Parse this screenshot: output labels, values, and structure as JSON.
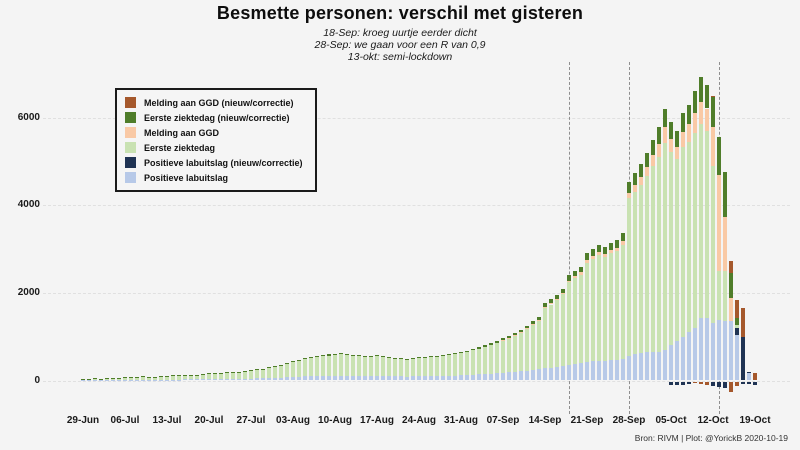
{
  "header": {
    "title": "Besmette personen: verschil met gisteren",
    "subtitles": [
      "18-Sep: kroeg uurtje eerder dicht",
      "28-Sep: we gaan voor een R van 0,9",
      "13-okt: semi-lockdown"
    ]
  },
  "footer": {
    "credit": "Bron: RIVM | Plot: @YorickB  2020-10-19"
  },
  "legend": {
    "items": [
      {
        "label": "Melding aan GGD (nieuw/correctie)",
        "color": "#a5582c"
      },
      {
        "label": "Eerste ziektedag (nieuw/correctie)",
        "color": "#4f7d2a"
      },
      {
        "label": "Melding aan GGD",
        "color": "#f9c9a5"
      },
      {
        "label": "Eerste ziektedag",
        "color": "#c9e2b2"
      },
      {
        "label": "Positieve labuitslag (nieuw/correctie)",
        "color": "#1f3353"
      },
      {
        "label": "Positieve labuitslag",
        "color": "#b7c9e8"
      }
    ]
  },
  "colors": {
    "background": "#f4f4f4",
    "gridline": "#e0e0e0",
    "event_line": "#8f8f8f"
  },
  "chart_data": {
    "type": "bar",
    "stacked": true,
    "title": "Besmette personen: verschil met gisteren",
    "xlabel": "",
    "ylabel": "",
    "date_range": [
      "29-Jun",
      "19-Oct"
    ],
    "x_tick_labels": [
      "29-Jun",
      "06-Jul",
      "13-Jul",
      "20-Jul",
      "27-Jul",
      "03-Aug",
      "10-Aug",
      "17-Aug",
      "24-Aug",
      "31-Aug",
      "07-Sep",
      "14-Sep",
      "21-Sep",
      "28-Sep",
      "05-Oct",
      "12-Oct",
      "19-Oct"
    ],
    "x_tick_days": [
      0,
      7,
      14,
      21,
      28,
      35,
      42,
      49,
      56,
      63,
      70,
      77,
      84,
      91,
      98,
      105,
      112
    ],
    "y_ticks": [
      0,
      2000,
      4000,
      6000
    ],
    "ylim": [
      -500,
      7300
    ],
    "grid": "horizontal-dashed",
    "legend_position": "upper-left",
    "events": [
      {
        "day": 81,
        "label": "18-Sep",
        "note": "kroeg uurtje eerder dicht"
      },
      {
        "day": 91,
        "label": "28-Sep",
        "note": "we gaan voor een R van 0,9"
      },
      {
        "day": 106,
        "label": "13-okt",
        "note": "semi-lockdown"
      }
    ],
    "columns_schema": [
      "positieve_labuitslag",
      "positieve_labuitslag_nieuw",
      "eerste_ziektedag",
      "melding_aan_ggd",
      "eerste_ziektedag_nieuw",
      "melding_aan_ggd_nieuw",
      "neg_positieve_labuitslag_nieuw",
      "neg_melding_aan_ggd_nieuw"
    ],
    "series_colors": {
      "positieve_labuitslag": "#b7c9e8",
      "positieve_labuitslag_nieuw": "#1f3353",
      "eerste_ziektedag": "#c9e2b2",
      "melding_aan_ggd": "#f9c9a5",
      "eerste_ziektedag_nieuw": "#4f7d2a",
      "melding_aan_ggd_nieuw": "#a5582c",
      "neg_positieve_labuitslag_nieuw": "#1f3353",
      "neg_melding_aan_ggd_nieuw": "#a5582c"
    },
    "days": [
      [
        8,
        0,
        27,
        0,
        5,
        0,
        0,
        0
      ],
      [
        9,
        0,
        31,
        0,
        5,
        0,
        0,
        0
      ],
      [
        10,
        0,
        35,
        0,
        5,
        0,
        0,
        0
      ],
      [
        8,
        0,
        28,
        0,
        4,
        0,
        0,
        0
      ],
      [
        10,
        0,
        40,
        0,
        5,
        0,
        0,
        0
      ],
      [
        10,
        0,
        35,
        0,
        5,
        0,
        0,
        0
      ],
      [
        12,
        0,
        42,
        0,
        6,
        0,
        0,
        0
      ],
      [
        14,
        0,
        55,
        0,
        6,
        0,
        0,
        0
      ],
      [
        15,
        0,
        63,
        0,
        7,
        0,
        0,
        0
      ],
      [
        15,
        0,
        58,
        0,
        7,
        0,
        0,
        0
      ],
      [
        17,
        0,
        70,
        0,
        8,
        0,
        0,
        0
      ],
      [
        16,
        0,
        66,
        0,
        8,
        0,
        0,
        0
      ],
      [
        15,
        0,
        62,
        0,
        8,
        0,
        0,
        0
      ],
      [
        18,
        0,
        74,
        0,
        8,
        0,
        0,
        0
      ],
      [
        20,
        0,
        81,
        0,
        9,
        0,
        0,
        0
      ],
      [
        22,
        0,
        89,
        0,
        9,
        0,
        0,
        0
      ],
      [
        21,
        0,
        85,
        0,
        9,
        0,
        0,
        0
      ],
      [
        24,
        0,
        96,
        0,
        10,
        0,
        0,
        0
      ],
      [
        23,
        0,
        92,
        0,
        10,
        0,
        0,
        0
      ],
      [
        25,
        0,
        100,
        0,
        10,
        0,
        0,
        0
      ],
      [
        27,
        0,
        112,
        0,
        11,
        0,
        0,
        0
      ],
      [
        29,
        0,
        120,
        0,
        11,
        0,
        0,
        0
      ],
      [
        31,
        0,
        127,
        0,
        12,
        0,
        0,
        0
      ],
      [
        30,
        0,
        123,
        0,
        12,
        0,
        0,
        0
      ],
      [
        34,
        0,
        138,
        0,
        13,
        0,
        0,
        0
      ],
      [
        35,
        0,
        146,
        0,
        14,
        0,
        0,
        0
      ],
      [
        37,
        0,
        154,
        0,
        14,
        0,
        0,
        0
      ],
      [
        40,
        0,
        165,
        0,
        15,
        0,
        0,
        0
      ],
      [
        44,
        0,
        181,
        0,
        15,
        0,
        0,
        0
      ],
      [
        46,
        0,
        193,
        0,
        16,
        0,
        0,
        0
      ],
      [
        49,
        0,
        204,
        0,
        17,
        0,
        0,
        0
      ],
      [
        55,
        0,
        227,
        0,
        18,
        0,
        0,
        0
      ],
      [
        60,
        0,
        251,
        0,
        19,
        0,
        0,
        0
      ],
      [
        66,
        0,
        279,
        0,
        20,
        0,
        0,
        0
      ],
      [
        74,
        0,
        310,
        0,
        21,
        0,
        0,
        0
      ],
      [
        81,
        0,
        342,
        0,
        22,
        0,
        0,
        0
      ],
      [
        86,
        0,
        366,
        0,
        23,
        0,
        0,
        0
      ],
      [
        92,
        0,
        389,
        0,
        24,
        0,
        0,
        0
      ],
      [
        97,
        0,
        414,
        0,
        24,
        0,
        0,
        0
      ],
      [
        101,
        0,
        429,
        0,
        25,
        0,
        0,
        0
      ],
      [
        105,
        0,
        445,
        0,
        25,
        0,
        0,
        0
      ],
      [
        108,
        0,
        462,
        0,
        25,
        0,
        0,
        0
      ],
      [
        112,
        0,
        478,
        0,
        25,
        0,
        0,
        0
      ],
      [
        114,
        0,
        486,
        0,
        25,
        0,
        0,
        0
      ],
      [
        110,
        0,
        471,
        0,
        24,
        0,
        0,
        0
      ],
      [
        107,
        0,
        459,
        0,
        24,
        0,
        0,
        0
      ],
      [
        105,
        0,
        447,
        0,
        23,
        0,
        0,
        0
      ],
      [
        103,
        0,
        439,
        0,
        23,
        0,
        0,
        0
      ],
      [
        101,
        0,
        431,
        0,
        23,
        0,
        0,
        0
      ],
      [
        106,
        0,
        451,
        0,
        23,
        0,
        0,
        0
      ],
      [
        102,
        0,
        435,
        0,
        23,
        0,
        0,
        0
      ],
      [
        98,
        0,
        420,
        0,
        22,
        0,
        0,
        0
      ],
      [
        95,
        0,
        403,
        0,
        22,
        0,
        0,
        0
      ],
      [
        92,
        0,
        391,
        0,
        22,
        0,
        0,
        0
      ],
      [
        90,
        0,
        384,
        0,
        21,
        0,
        0,
        0
      ],
      [
        93,
        0,
        396,
        0,
        21,
        0,
        0,
        0
      ],
      [
        96,
        0,
        412,
        0,
        22,
        0,
        0,
        0
      ],
      [
        98,
        0,
        420,
        0,
        22,
        0,
        0,
        0
      ],
      [
        100,
        0,
        428,
        0,
        22,
        0,
        0,
        0
      ],
      [
        103,
        0,
        439,
        0,
        23,
        0,
        0,
        0
      ],
      [
        106,
        0,
        451,
        0,
        23,
        0,
        0,
        0
      ],
      [
        109,
        0,
        467,
        0,
        24,
        0,
        0,
        0
      ],
      [
        113,
        0,
        483,
        0,
        24,
        0,
        0,
        0
      ],
      [
        118,
        0,
        506,
        0,
        26,
        0,
        0,
        0
      ],
      [
        124,
        0,
        529,
        0,
        27,
        0,
        0,
        0
      ],
      [
        130,
        0,
        557,
        0,
        28,
        0,
        0,
        0
      ],
      [
        137,
        0,
        588,
        0,
        30,
        0,
        0,
        0
      ],
      [
        146,
        0,
        622,
        0,
        32,
        0,
        0,
        0
      ],
      [
        155,
        0,
        661,
        0,
        34,
        0,
        0,
        0
      ],
      [
        164,
        0,
        700,
        0,
        36,
        0,
        0,
        0
      ],
      [
        175,
        0,
        737,
        10,
        38,
        0,
        0,
        0
      ],
      [
        186,
        0,
        782,
        12,
        40,
        0,
        0,
        0
      ],
      [
        197,
        0,
        827,
        13,
        43,
        0,
        0,
        0
      ],
      [
        209,
        0,
        879,
        15,
        47,
        0,
        0,
        0
      ],
      [
        228,
        0,
        954,
        17,
        51,
        0,
        0,
        0
      ],
      [
        246,
        0,
        1030,
        19,
        55,
        0,
        0,
        0
      ],
      [
        264,
        0,
        1105,
        21,
        60,
        0,
        0,
        0
      ],
      [
        280,
        0,
        1380,
        25,
        85,
        0,
        0,
        0
      ],
      [
        295,
        0,
        1440,
        28,
        87,
        0,
        0,
        0
      ],
      [
        310,
        0,
        1520,
        30,
        90,
        0,
        0,
        0
      ],
      [
        330,
        0,
        1640,
        35,
        95,
        0,
        0,
        0
      ],
      [
        360,
        0,
        1880,
        40,
        120,
        0,
        0,
        0
      ],
      [
        375,
        0,
        1960,
        45,
        120,
        0,
        0,
        0
      ],
      [
        390,
        0,
        2030,
        50,
        130,
        0,
        0,
        0
      ],
      [
        420,
        0,
        2270,
        60,
        150,
        0,
        0,
        0
      ],
      [
        435,
        0,
        2340,
        65,
        160,
        0,
        0,
        0
      ],
      [
        450,
        0,
        2420,
        70,
        160,
        0,
        0,
        0
      ],
      [
        445,
        0,
        2380,
        70,
        155,
        0,
        0,
        0
      ],
      [
        460,
        0,
        2450,
        75,
        165,
        0,
        0,
        0
      ],
      [
        470,
        0,
        2480,
        80,
        170,
        0,
        0,
        0
      ],
      [
        490,
        0,
        2600,
        90,
        180,
        0,
        0,
        0
      ],
      [
        570,
        0,
        3590,
        120,
        260,
        0,
        0,
        0
      ],
      [
        600,
        0,
        3710,
        150,
        280,
        0,
        0,
        0
      ],
      [
        620,
        0,
        3850,
        180,
        300,
        0,
        0,
        0
      ],
      [
        640,
        0,
        4020,
        220,
        320,
        0,
        0,
        0
      ],
      [
        650,
        0,
        4240,
        260,
        350,
        0,
        0,
        0
      ],
      [
        660,
        0,
        4450,
        300,
        380,
        0,
        0,
        0
      ],
      [
        700,
        0,
        4730,
        350,
        420,
        0,
        0,
        0
      ],
      [
        800,
        0,
        4420,
        300,
        380,
        0,
        90,
        0
      ],
      [
        900,
        0,
        4160,
        280,
        360,
        0,
        90,
        0
      ],
      [
        1000,
        0,
        4330,
        350,
        420,
        0,
        70,
        0
      ],
      [
        1100,
        0,
        4350,
        400,
        450,
        0,
        60,
        0
      ],
      [
        1200,
        0,
        4450,
        450,
        500,
        0,
        0,
        40
      ],
      [
        1430,
        0,
        4430,
        500,
        560,
        0,
        0,
        60
      ],
      [
        1430,
        0,
        4260,
        520,
        540,
        0,
        0,
        90
      ],
      [
        1320,
        0,
        3580,
        890,
        680,
        20,
        100,
        0
      ],
      [
        1390,
        0,
        1110,
        2200,
        850,
        0,
        130,
        0
      ],
      [
        1360,
        0,
        1130,
        1250,
        1020,
        0,
        150,
        0
      ],
      [
        1350,
        0,
        0,
        530,
        570,
        270,
        0,
        230
      ],
      [
        1040,
        160,
        70,
        0,
        160,
        410,
        0,
        100
      ],
      [
        0,
        1000,
        0,
        0,
        0,
        660,
        60,
        0
      ],
      [
        180,
        20,
        0,
        0,
        0,
        0,
        60,
        0
      ],
      [
        0,
        0,
        0,
        0,
        0,
        170,
        90,
        0
      ]
    ]
  }
}
